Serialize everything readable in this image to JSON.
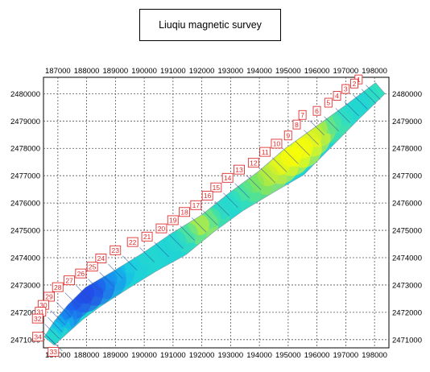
{
  "title": "Liuqiu magnetic survey",
  "x_ticks": [
    "187000",
    "188000",
    "189000",
    "190000",
    "191000",
    "192000",
    "193000",
    "194000",
    "195000",
    "196000",
    "197000",
    "198000"
  ],
  "y_ticks": [
    "2480000",
    "2479000",
    "2478000",
    "2477000",
    "2476000",
    "2475000",
    "2474000",
    "2473000",
    "2472000",
    "2471000"
  ],
  "chart_data": {
    "type": "heatmap",
    "title": "Liuqiu magnetic survey",
    "xlabel": "",
    "ylabel": "",
    "xlim": [
      186500,
      198500
    ],
    "ylim": [
      2470700,
      2480600
    ],
    "grid": true,
    "colormap": [
      "#2f1de0",
      "#1a6ff0",
      "#12c8ea",
      "#36e5b8",
      "#8ce64d",
      "#d7ef2b",
      "#ffff00"
    ],
    "profiles": [
      {
        "label": "1",
        "x": 197950,
        "y": 2480050,
        "value": 0.5
      },
      {
        "label": "2",
        "x": 197800,
        "y": 2479900,
        "value": 0.45
      },
      {
        "label": "3",
        "x": 197500,
        "y": 2479700,
        "value": 0.4
      },
      {
        "label": "4",
        "x": 197200,
        "y": 2479450,
        "value": 0.42
      },
      {
        "label": "5",
        "x": 196900,
        "y": 2479200,
        "value": 0.45
      },
      {
        "label": "6",
        "x": 196500,
        "y": 2478900,
        "value": 0.55
      },
      {
        "label": "7",
        "x": 196000,
        "y": 2478750,
        "value": 0.75
      },
      {
        "label": "8",
        "x": 195800,
        "y": 2478400,
        "value": 0.9
      },
      {
        "label": "9",
        "x": 195500,
        "y": 2478000,
        "value": 0.98
      },
      {
        "label": "10",
        "x": 195100,
        "y": 2477700,
        "value": 1.0
      },
      {
        "label": "11",
        "x": 194700,
        "y": 2477400,
        "value": 0.95
      },
      {
        "label": "12",
        "x": 194300,
        "y": 2477000,
        "value": 0.8
      },
      {
        "label": "13",
        "x": 193800,
        "y": 2476750,
        "value": 0.65
      },
      {
        "label": "14",
        "x": 193400,
        "y": 2476450,
        "value": 0.55
      },
      {
        "label": "15",
        "x": 193000,
        "y": 2476100,
        "value": 0.45
      },
      {
        "label": "16",
        "x": 192700,
        "y": 2475800,
        "value": 0.42
      },
      {
        "label": "17",
        "x": 192300,
        "y": 2475450,
        "value": 0.55
      },
      {
        "label": "18",
        "x": 191900,
        "y": 2475200,
        "value": 0.8
      },
      {
        "label": "19",
        "x": 191500,
        "y": 2474900,
        "value": 0.55
      },
      {
        "label": "20",
        "x": 191100,
        "y": 2474600,
        "value": 0.42
      },
      {
        "label": "21",
        "x": 190600,
        "y": 2474300,
        "value": 0.4
      },
      {
        "label": "22",
        "x": 190100,
        "y": 2474100,
        "value": 0.42
      },
      {
        "label": "23",
        "x": 189500,
        "y": 2473800,
        "value": 0.38
      },
      {
        "label": "24",
        "x": 189000,
        "y": 2473500,
        "value": 0.3
      },
      {
        "label": "25",
        "x": 188700,
        "y": 2473200,
        "value": 0.22
      },
      {
        "label": "26",
        "x": 188300,
        "y": 2472950,
        "value": 0.12
      },
      {
        "label": "27",
        "x": 187900,
        "y": 2472700,
        "value": 0.08
      },
      {
        "label": "28",
        "x": 187500,
        "y": 2472450,
        "value": 0.1
      },
      {
        "label": "29",
        "x": 187200,
        "y": 2472100,
        "value": 0.15
      },
      {
        "label": "30",
        "x": 187000,
        "y": 2471800,
        "value": 0.22
      },
      {
        "label": "31",
        "x": 186900,
        "y": 2471550,
        "value": 0.3
      },
      {
        "label": "32",
        "x": 186800,
        "y": 2471300,
        "value": 0.35
      },
      {
        "label": "33",
        "x": 186900,
        "y": 2470850,
        "value": 0.4
      },
      {
        "label": "34",
        "x": 186700,
        "y": 2471050,
        "value": 0.45
      }
    ]
  }
}
